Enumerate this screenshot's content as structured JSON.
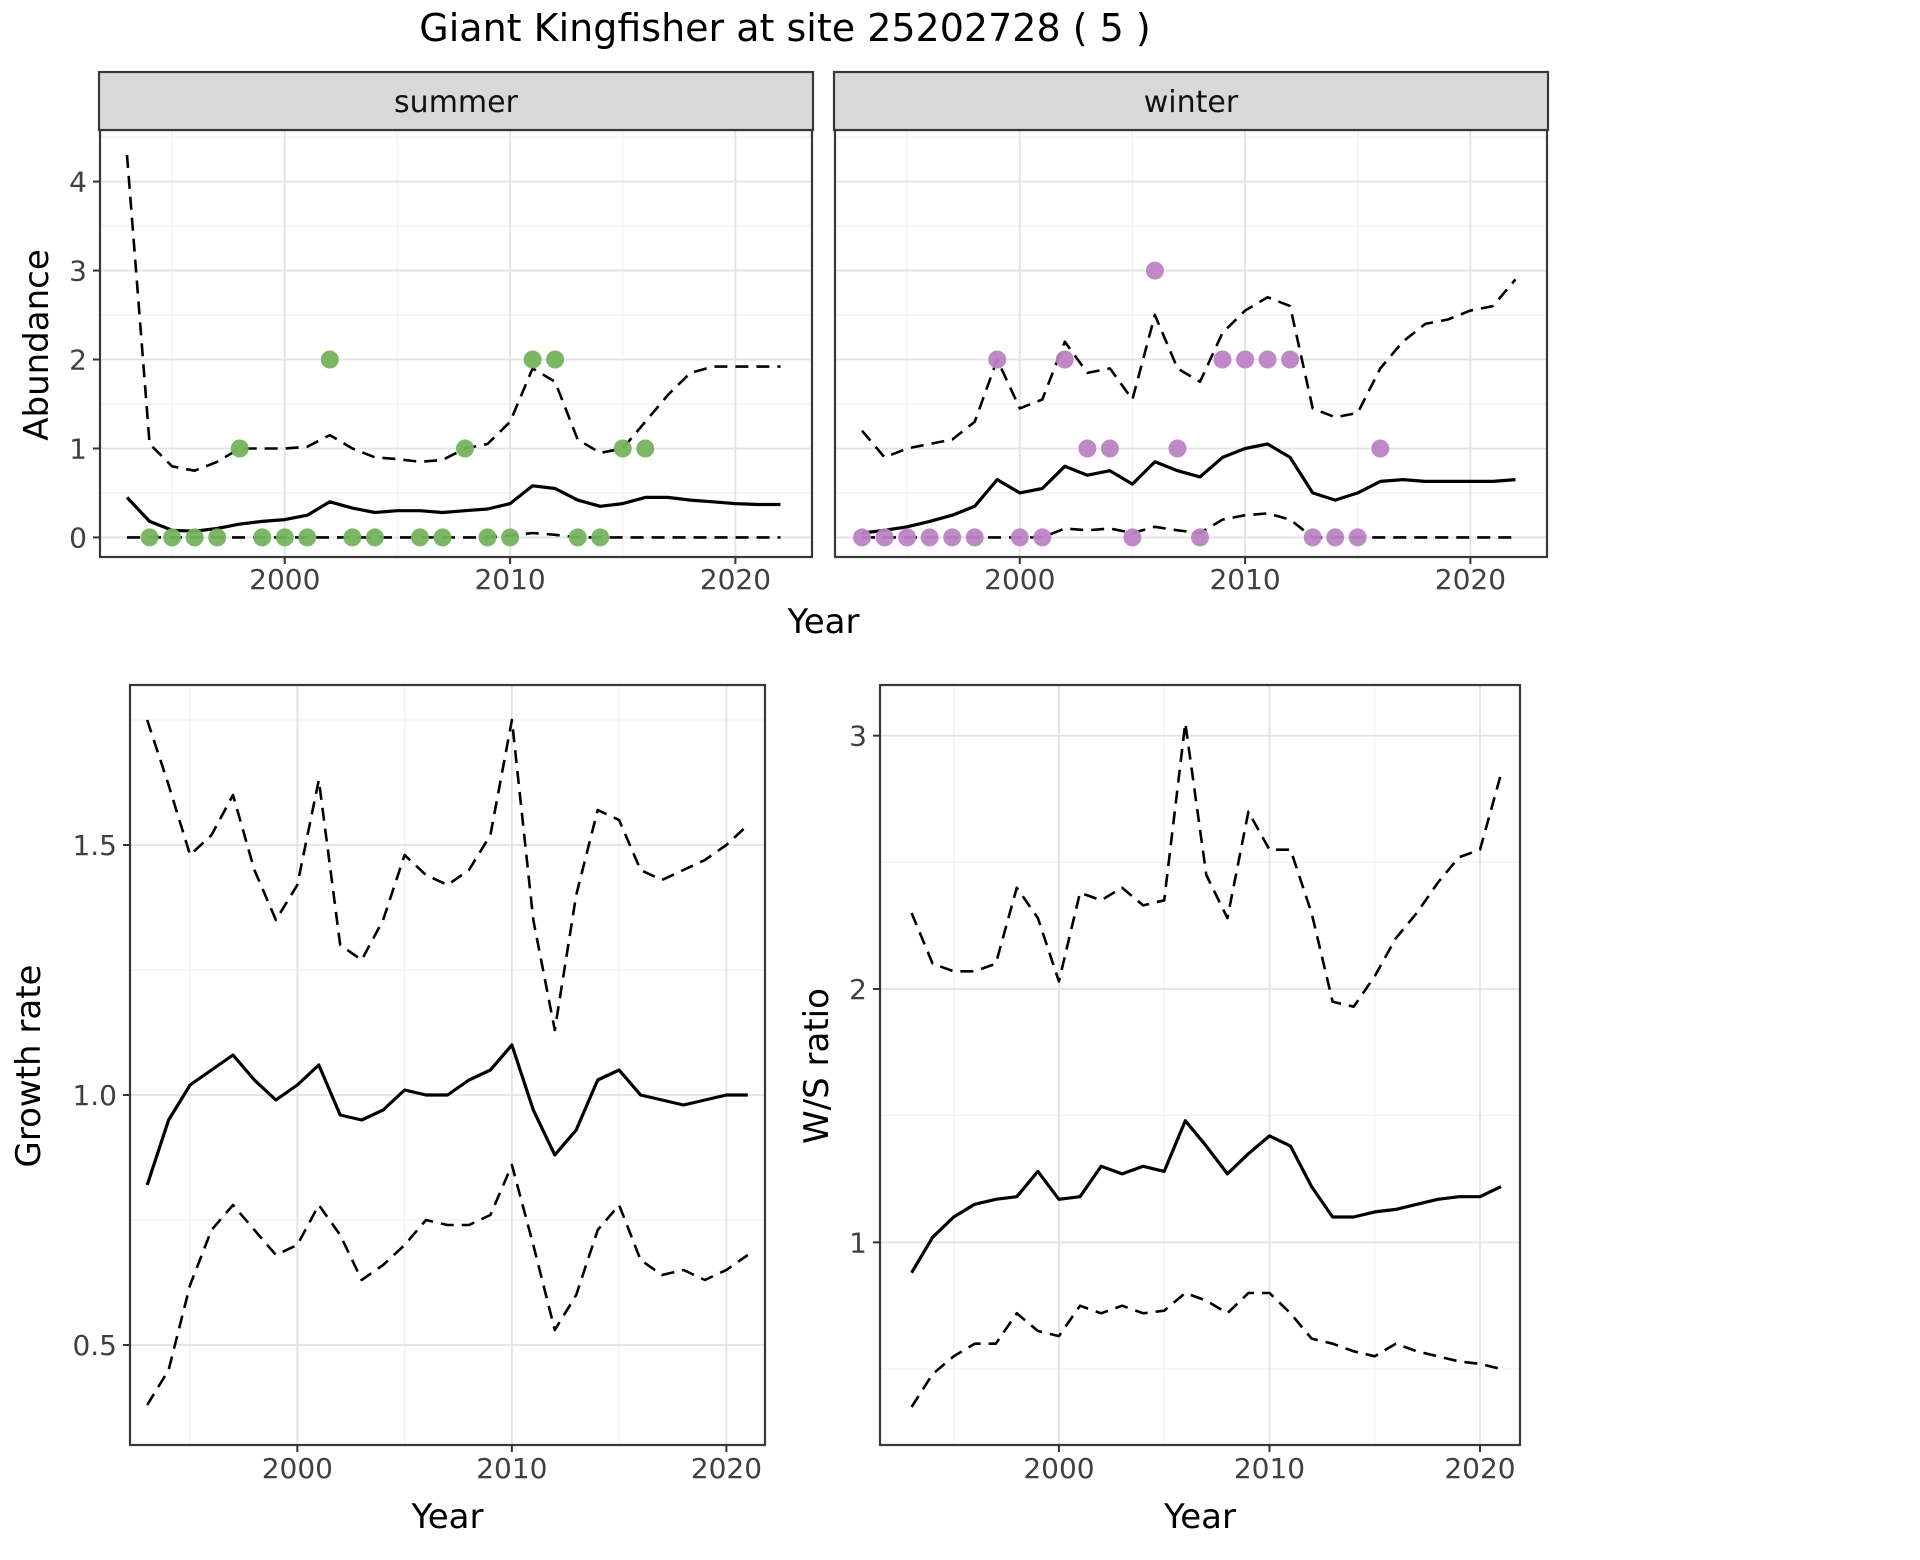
{
  "title": "Giant Kingfisher at site 25202728 ( 5 )",
  "colors": {
    "summer_points": "#74b35c",
    "winter_points": "#bc83c4",
    "fit_line": "#000000",
    "ci_line": "#000000",
    "strip_background": "#d9d9d9",
    "panel_border": "#383838",
    "grid_major": "#e3e3e3",
    "grid_minor": "#f1f1f1",
    "tick_text": "#404040"
  },
  "chart_data": [
    {
      "id": "abundance",
      "type": "line",
      "title": "",
      "ylabel": "Abundance",
      "xlabel": "Year",
      "legend": "none",
      "grid": "on",
      "xlim": [
        1991.8,
        2023.4
      ],
      "ylim": [
        -0.22,
        4.58
      ],
      "xticks": [
        2000,
        2010,
        2020
      ],
      "xtick_labels": [
        "2000",
        "2010",
        "2020"
      ],
      "yticks": [
        0,
        1,
        2,
        3,
        4
      ],
      "ytick_labels": [
        "0",
        "1",
        "2",
        "3",
        "4"
      ],
      "facets": [
        {
          "label": "summer",
          "years": [
            1993,
            1994,
            1995,
            1996,
            1997,
            1998,
            1999,
            2000,
            2001,
            2002,
            2003,
            2004,
            2005,
            2006,
            2007,
            2008,
            2009,
            2010,
            2011,
            2012,
            2013,
            2014,
            2015,
            2016,
            2017,
            2018,
            2019,
            2020,
            2021,
            2022
          ],
          "series": [
            {
              "name": "fit",
              "style": "solid",
              "values": [
                0.45,
                0.18,
                0.08,
                0.07,
                0.1,
                0.15,
                0.18,
                0.2,
                0.25,
                0.4,
                0.33,
                0.28,
                0.3,
                0.3,
                0.28,
                0.3,
                0.32,
                0.38,
                0.58,
                0.55,
                0.42,
                0.35,
                0.38,
                0.45,
                0.45,
                0.42,
                0.4,
                0.38,
                0.37,
                0.37
              ]
            },
            {
              "name": "upper_ci",
              "style": "dashed",
              "values": [
                4.3,
                1.05,
                0.8,
                0.75,
                0.85,
                1.0,
                1.0,
                1.0,
                1.02,
                1.15,
                1.0,
                0.9,
                0.88,
                0.85,
                0.87,
                1.0,
                1.05,
                1.3,
                1.9,
                1.75,
                1.1,
                0.95,
                1.0,
                1.3,
                1.6,
                1.85,
                1.92,
                1.92,
                1.92,
                1.92
              ]
            },
            {
              "name": "lower_ci",
              "style": "dashed",
              "values": [
                0,
                0,
                0,
                0,
                0,
                0,
                0,
                0,
                0,
                0,
                0,
                0,
                0,
                0,
                0,
                0,
                0,
                0.02,
                0.05,
                0.03,
                0,
                0,
                0,
                0,
                0,
                0,
                0,
                0,
                0,
                0
              ]
            }
          ],
          "observations": {
            "years": [
              1994,
              1995,
              1996,
              1997,
              1998,
              1999,
              2000,
              2001,
              2002,
              2003,
              2004,
              2006,
              2007,
              2008,
              2009,
              2010,
              2011,
              2012,
              2013,
              2014,
              2015,
              2016
            ],
            "values": [
              0,
              0,
              0,
              0,
              1,
              0,
              0,
              0,
              2,
              0,
              0,
              0,
              0,
              1,
              0,
              0,
              2,
              2,
              0,
              0,
              1,
              1
            ],
            "color": "#74b35c"
          }
        },
        {
          "label": "winter",
          "years": [
            1993,
            1994,
            1995,
            1996,
            1997,
            1998,
            1999,
            2000,
            2001,
            2002,
            2003,
            2004,
            2005,
            2006,
            2007,
            2008,
            2009,
            2010,
            2011,
            2012,
            2013,
            2014,
            2015,
            2016,
            2017,
            2018,
            2019,
            2020,
            2021,
            2022
          ],
          "series": [
            {
              "name": "fit",
              "style": "solid",
              "values": [
                0.05,
                0.08,
                0.12,
                0.18,
                0.25,
                0.35,
                0.65,
                0.5,
                0.55,
                0.8,
                0.7,
                0.75,
                0.6,
                0.85,
                0.75,
                0.68,
                0.9,
                1.0,
                1.05,
                0.9,
                0.5,
                0.42,
                0.5,
                0.63,
                0.65,
                0.63,
                0.63,
                0.63,
                0.63,
                0.65
              ]
            },
            {
              "name": "upper_ci",
              "style": "dashed",
              "values": [
                1.2,
                0.9,
                1.0,
                1.05,
                1.1,
                1.3,
                2.0,
                1.45,
                1.55,
                2.2,
                1.85,
                1.9,
                1.55,
                2.5,
                1.9,
                1.75,
                2.3,
                2.55,
                2.7,
                2.6,
                1.45,
                1.35,
                1.4,
                1.9,
                2.2,
                2.4,
                2.45,
                2.55,
                2.6,
                2.9
              ]
            },
            {
              "name": "lower_ci",
              "style": "dashed",
              "values": [
                0,
                0,
                0,
                0,
                0,
                0,
                0,
                0,
                0,
                0.1,
                0.08,
                0.1,
                0.05,
                0.12,
                0.08,
                0.05,
                0.2,
                0.25,
                0.27,
                0.2,
                0,
                0,
                0,
                0,
                0,
                0,
                0,
                0,
                0,
                0
              ]
            }
          ],
          "observations": {
            "years": [
              1993,
              1994,
              1995,
              1996,
              1997,
              1998,
              1999,
              2000,
              2001,
              2002,
              2003,
              2004,
              2005,
              2006,
              2007,
              2008,
              2009,
              2010,
              2011,
              2012,
              2013,
              2014,
              2015,
              2016
            ],
            "values": [
              0,
              0,
              0,
              0,
              0,
              0,
              2,
              0,
              0,
              2,
              1,
              1,
              0,
              3,
              1,
              0,
              2,
              2,
              2,
              2,
              0,
              0,
              0,
              1
            ],
            "color": "#bc83c4"
          }
        }
      ]
    },
    {
      "id": "growth_rate",
      "type": "line",
      "title": "",
      "ylabel": "Growth rate",
      "xlabel": "Year",
      "legend": "none",
      "grid": "on",
      "xlim": [
        1992.2,
        2021.8
      ],
      "ylim": [
        0.3,
        1.82
      ],
      "xticks": [
        2000,
        2010,
        2020
      ],
      "xtick_labels": [
        "2000",
        "2010",
        "2020"
      ],
      "yticks": [
        0.5,
        1.0,
        1.5
      ],
      "ytick_labels": [
        "0.5",
        "1.0",
        "1.5"
      ],
      "years": [
        1993,
        1994,
        1995,
        1996,
        1997,
        1998,
        1999,
        2000,
        2001,
        2002,
        2003,
        2004,
        2005,
        2006,
        2007,
        2008,
        2009,
        2010,
        2011,
        2012,
        2013,
        2014,
        2015,
        2016,
        2017,
        2018,
        2019,
        2020,
        2021
      ],
      "series": [
        {
          "name": "fit",
          "style": "solid",
          "values": [
            0.82,
            0.95,
            1.02,
            1.05,
            1.08,
            1.03,
            0.99,
            1.02,
            1.06,
            0.96,
            0.95,
            0.97,
            1.01,
            1.0,
            1.0,
            1.03,
            1.05,
            1.1,
            0.97,
            0.88,
            0.93,
            1.03,
            1.05,
            1.0,
            0.99,
            0.98,
            0.99,
            1.0,
            1.0
          ]
        },
        {
          "name": "upper_ci",
          "style": "dashed",
          "values": [
            1.75,
            1.62,
            1.48,
            1.52,
            1.6,
            1.45,
            1.35,
            1.42,
            1.63,
            1.3,
            1.27,
            1.35,
            1.48,
            1.44,
            1.42,
            1.45,
            1.52,
            1.75,
            1.35,
            1.13,
            1.4,
            1.57,
            1.55,
            1.45,
            1.43,
            1.45,
            1.47,
            1.5,
            1.54
          ]
        },
        {
          "name": "lower_ci",
          "style": "dashed",
          "values": [
            0.38,
            0.45,
            0.62,
            0.73,
            0.78,
            0.73,
            0.68,
            0.7,
            0.78,
            0.72,
            0.63,
            0.66,
            0.7,
            0.75,
            0.74,
            0.74,
            0.76,
            0.86,
            0.7,
            0.53,
            0.6,
            0.73,
            0.78,
            0.67,
            0.64,
            0.65,
            0.63,
            0.65,
            0.68
          ]
        }
      ]
    },
    {
      "id": "ws_ratio",
      "type": "line",
      "title": "",
      "ylabel": "W/S ratio",
      "xlabel": "Year",
      "legend": "none",
      "grid": "on",
      "xlim": [
        1991.5,
        2021.9
      ],
      "ylim": [
        0.2,
        3.2
      ],
      "xticks": [
        2000,
        2010,
        2020
      ],
      "xtick_labels": [
        "2000",
        "2010",
        "2020"
      ],
      "yticks": [
        1,
        2,
        3
      ],
      "ytick_labels": [
        "1",
        "2",
        "3"
      ],
      "years": [
        1993,
        1994,
        1995,
        1996,
        1997,
        1998,
        1999,
        2000,
        2001,
        2002,
        2003,
        2004,
        2005,
        2006,
        2007,
        2008,
        2009,
        2010,
        2011,
        2012,
        2013,
        2014,
        2015,
        2016,
        2017,
        2018,
        2019,
        2020,
        2021
      ],
      "series": [
        {
          "name": "fit",
          "style": "solid",
          "values": [
            0.88,
            1.02,
            1.1,
            1.15,
            1.17,
            1.18,
            1.28,
            1.17,
            1.18,
            1.3,
            1.27,
            1.3,
            1.28,
            1.48,
            1.38,
            1.27,
            1.35,
            1.42,
            1.38,
            1.22,
            1.1,
            1.1,
            1.12,
            1.13,
            1.15,
            1.17,
            1.18,
            1.18,
            1.22
          ]
        },
        {
          "name": "upper_ci",
          "style": "dashed",
          "values": [
            2.3,
            2.1,
            2.07,
            2.07,
            2.1,
            2.4,
            2.28,
            2.03,
            2.38,
            2.35,
            2.4,
            2.33,
            2.35,
            3.05,
            2.45,
            2.28,
            2.7,
            2.55,
            2.55,
            2.3,
            1.95,
            1.93,
            2.05,
            2.2,
            2.3,
            2.42,
            2.52,
            2.55,
            2.85
          ]
        },
        {
          "name": "lower_ci",
          "style": "dashed",
          "values": [
            0.35,
            0.48,
            0.55,
            0.6,
            0.6,
            0.72,
            0.65,
            0.63,
            0.75,
            0.72,
            0.75,
            0.72,
            0.73,
            0.8,
            0.77,
            0.72,
            0.8,
            0.8,
            0.72,
            0.62,
            0.6,
            0.57,
            0.55,
            0.6,
            0.57,
            0.55,
            0.53,
            0.52,
            0.5
          ]
        }
      ]
    }
  ]
}
